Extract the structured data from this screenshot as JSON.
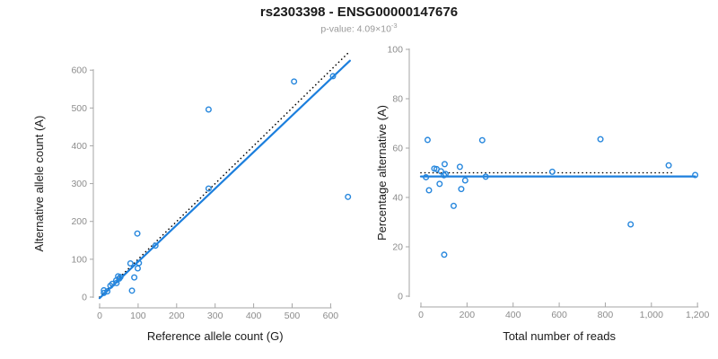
{
  "header": {
    "title": "rs2303398 - ENSG00000147676",
    "pvalue_text": "p-value: 4.09×10",
    "pvalue_exponent": "-3"
  },
  "colors": {
    "accent_blue": "#1c7fdd",
    "point_blue": "#2787dd",
    "dotted_black": "#000000",
    "axis_gray": "#a6a6a6",
    "tick_label_gray": "#8c8c8c",
    "axis_title_color": "#1a1a1a",
    "title_color": "#1a1a1a",
    "subtitle_gray": "#999999"
  },
  "chart_data": [
    {
      "type": "scatter",
      "name": "allele-count-scatter",
      "xlabel": "Reference allele count (G)",
      "ylabel": "Alternative allele count (A)",
      "xlim": [
        0,
        655
      ],
      "ylim": [
        0,
        655
      ],
      "xticks": [
        0,
        100,
        200,
        300,
        400,
        500,
        600
      ],
      "xtick_labels": [
        "0",
        "100",
        "200",
        "300",
        "400",
        "500",
        "600"
      ],
      "yticks": [
        0,
        100,
        200,
        300,
        400,
        500,
        600
      ],
      "ytick_labels": [
        "0",
        "100",
        "200",
        "300",
        "400",
        "500",
        "600"
      ],
      "grid": false,
      "legend": "none",
      "points": [
        [
          11,
          18
        ],
        [
          11,
          11
        ],
        [
          20,
          15
        ],
        [
          28,
          30
        ],
        [
          33,
          35
        ],
        [
          43,
          44
        ],
        [
          44,
          37
        ],
        [
          48,
          55
        ],
        [
          51,
          49
        ],
        [
          54,
          53
        ],
        [
          80,
          89
        ],
        [
          84,
          17
        ],
        [
          90,
          52
        ],
        [
          98,
          168
        ],
        [
          99,
          76
        ],
        [
          102,
          90
        ],
        [
          145,
          136
        ],
        [
          283,
          287
        ],
        [
          283,
          496
        ],
        [
          505,
          570
        ],
        [
          606,
          584
        ],
        [
          645,
          265
        ]
      ],
      "lines": [
        {
          "name": "identity-line",
          "style": "dotted",
          "from": [
            0,
            0
          ],
          "to": [
            645,
            645
          ]
        },
        {
          "name": "fit-line",
          "style": "solid",
          "from": [
            0,
            -3
          ],
          "to": [
            650,
            625
          ]
        }
      ]
    },
    {
      "type": "scatter",
      "name": "percentage-scatter",
      "xlabel": "Total number of reads",
      "ylabel": "Percentage alternative (A)",
      "xlim": [
        0,
        1250
      ],
      "ylim": [
        0,
        100
      ],
      "xticks": [
        0,
        200,
        400,
        600,
        800,
        1000,
        1200
      ],
      "xtick_labels": [
        "0",
        "200",
        "400",
        "600",
        "800",
        "1,000",
        "1,200"
      ],
      "yticks": [
        0,
        20,
        40,
        60,
        80,
        100
      ],
      "ytick_labels": [
        "0",
        "20",
        "40",
        "60",
        "80",
        "100"
      ],
      "grid": false,
      "legend": "none",
      "points": [
        [
          22,
          48.2
        ],
        [
          29,
          63.3
        ],
        [
          35,
          42.9
        ],
        [
          58,
          51.7
        ],
        [
          68,
          51.5
        ],
        [
          81,
          45.5
        ],
        [
          87,
          50.6
        ],
        [
          100,
          49.0
        ],
        [
          101,
          16.8
        ],
        [
          103,
          53.5
        ],
        [
          107,
          49.5
        ],
        [
          142,
          36.6
        ],
        [
          169,
          52.4
        ],
        [
          175,
          43.4
        ],
        [
          192,
          46.9
        ],
        [
          266,
          63.2
        ],
        [
          281,
          48.4
        ],
        [
          570,
          50.4
        ],
        [
          779,
          63.6
        ],
        [
          910,
          29.1
        ],
        [
          1075,
          53.0
        ],
        [
          1190,
          49.1
        ]
      ],
      "lines": [
        {
          "name": "expected-50-line",
          "style": "dotted",
          "from": [
            0,
            50
          ],
          "to": [
            1100,
            50
          ]
        },
        {
          "name": "mean-line",
          "style": "solid",
          "from": [
            0,
            48.5
          ],
          "to": [
            1190,
            48.5
          ]
        }
      ]
    }
  ]
}
